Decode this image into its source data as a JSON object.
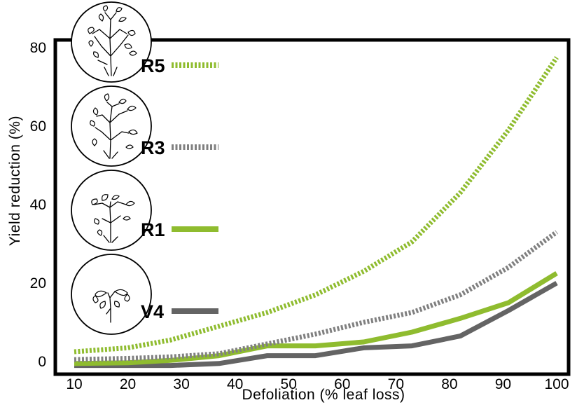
{
  "chart_data": {
    "type": "line",
    "xlabel": "Defoliation (% leaf loss)",
    "ylabel": "Yield reduction (%)",
    "xlim": [
      10,
      100
    ],
    "ylim": [
      0,
      80
    ],
    "x_ticks": [
      10,
      20,
      30,
      40,
      50,
      60,
      70,
      80,
      90,
      100
    ],
    "y_ticks": [
      0,
      20,
      40,
      60,
      80
    ],
    "grid": false,
    "legend_placement": "left, stacked top to bottom with plant illustrations",
    "series": [
      {
        "name": "R5",
        "color": "#8fbc2f",
        "style": "dotted",
        "x": [
          10,
          20,
          28,
          37,
          46,
          55,
          64,
          73,
          82,
          91,
          100
        ],
        "y": [
          2.5,
          3.5,
          5.5,
          9,
          12.5,
          17,
          23,
          30.5,
          43,
          59,
          77.5
        ]
      },
      {
        "name": "R3",
        "color": "#808080",
        "style": "dotted",
        "x": [
          10,
          20,
          28,
          37,
          46,
          55,
          64,
          73,
          82,
          91,
          100
        ],
        "y": [
          0.5,
          0.8,
          1.2,
          2,
          4.5,
          7,
          10,
          12.5,
          17,
          24,
          33
        ]
      },
      {
        "name": "R1",
        "color": "#8fbc2f",
        "style": "solid",
        "x": [
          10,
          20,
          28,
          37,
          46,
          55,
          64,
          73,
          82,
          91,
          100
        ],
        "y": [
          -0.5,
          -0.3,
          0.3,
          1.5,
          4,
          4,
          5,
          7.5,
          11,
          15,
          22.5
        ]
      },
      {
        "name": "V4",
        "color": "#646464",
        "style": "solid",
        "x": [
          10,
          20,
          28,
          37,
          46,
          55,
          64,
          73,
          82,
          91,
          100
        ],
        "y": [
          -1,
          -1,
          -1,
          -0.5,
          1.5,
          1.5,
          3.5,
          4,
          6.5,
          13,
          20
        ]
      }
    ]
  }
}
